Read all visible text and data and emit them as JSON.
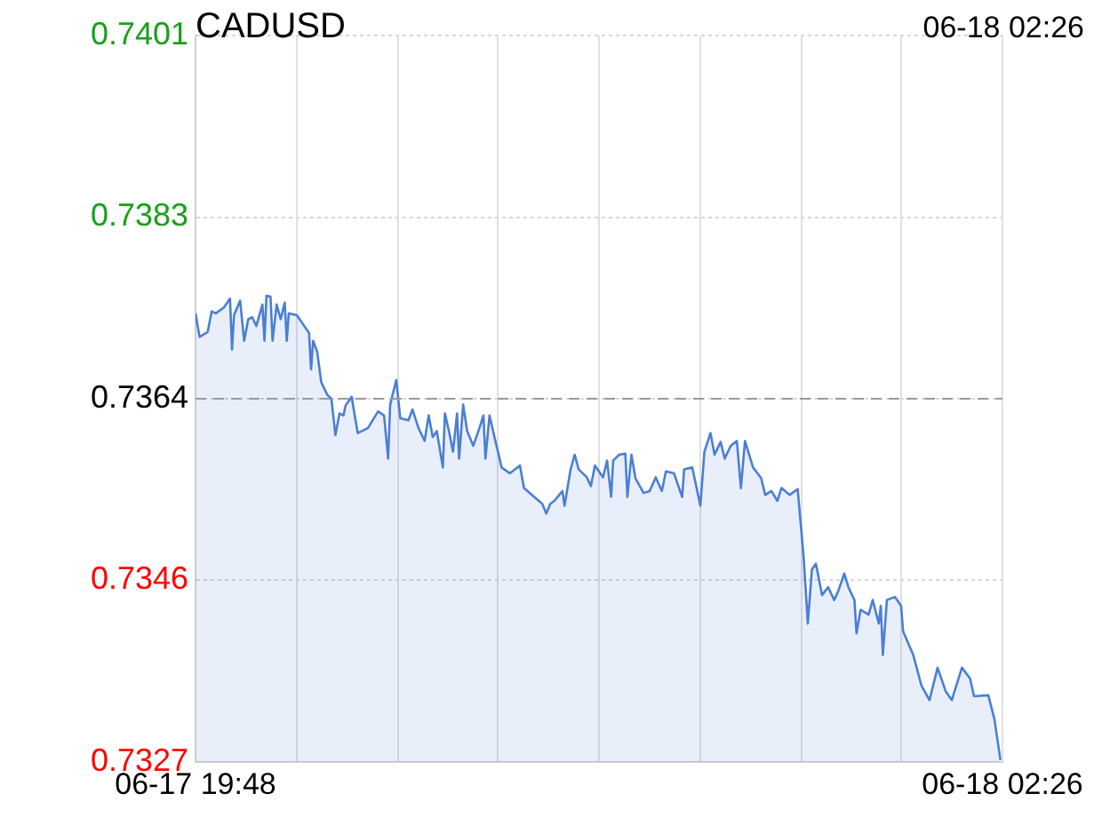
{
  "chart_data": {
    "type": "area",
    "title": "CADUSD",
    "annotations": [
      "06-18 02:26"
    ],
    "x": [
      "--06-17T19:48",
      "--06-17T19:50",
      "--06-17T19:54",
      "--06-17T19:56",
      "--06-17T19:58",
      "--06-17T20:02",
      "--06-17T20:05",
      "--06-17T20:06",
      "--06-17T20:07",
      "--06-17T20:10",
      "--06-17T20:12",
      "--06-17T20:14",
      "--06-17T20:16",
      "--06-17T20:18",
      "--06-17T20:21",
      "--06-17T20:22",
      "--06-17T20:23",
      "--06-17T20:25",
      "--06-17T20:26",
      "--06-17T20:28",
      "--06-17T20:30",
      "--06-17T20:32",
      "--06-17T20:33",
      "--06-17T20:34",
      "--06-17T20:38",
      "--06-17T20:41",
      "--06-17T20:44",
      "--06-17T20:45",
      "--06-17T20:46",
      "--06-17T20:48",
      "--06-17T20:50",
      "--06-17T20:53",
      "--06-17T20:55",
      "--06-17T20:57",
      "--06-17T20:59",
      "--06-17T21:01",
      "--06-17T21:02",
      "--06-17T21:05",
      "--06-17T21:08",
      "--06-17T21:13",
      "--06-17T21:18",
      "--06-17T21:21",
      "--06-17T21:23",
      "--06-17T21:24",
      "--06-17T21:27",
      "--06-17T21:29",
      "--06-17T21:33",
      "--06-17T21:35",
      "--06-17T21:38",
      "--06-17T21:41",
      "--06-17T21:43",
      "--06-17T21:45",
      "--06-17T21:47",
      "--06-17T21:50",
      "--06-17T21:51",
      "--06-17T21:53",
      "--06-17T21:55",
      "--06-17T21:57",
      "--06-17T21:58",
      "--06-17T22:00",
      "--06-17T22:02",
      "--06-17T22:05",
      "--06-17T22:08",
      "--06-17T22:10",
      "--06-17T22:11",
      "--06-17T22:13",
      "--06-17T22:15",
      "--06-17T22:19",
      "--06-17T22:23",
      "--06-17T22:28",
      "--06-17T22:30",
      "--06-17T22:35",
      "--06-17T22:39",
      "--06-17T22:41",
      "--06-17T22:43",
      "--06-17T22:45",
      "--06-17T22:49",
      "--06-17T22:50",
      "--06-17T22:53",
      "--06-17T22:55",
      "--06-17T22:57",
      "--06-17T23:01",
      "--06-17T23:03",
      "--06-17T23:05",
      "--06-17T23:09",
      "--06-17T23:11",
      "--06-17T23:13",
      "--06-17T23:14",
      "--06-17T23:17",
      "--06-17T23:20",
      "--06-17T23:21",
      "--06-17T23:23",
      "--06-17T23:25",
      "--06-17T23:29",
      "--06-17T23:32",
      "--06-17T23:35",
      "--06-17T23:38",
      "--06-17T23:40",
      "--06-17T23:44",
      "--06-17T23:48",
      "--06-17T23:49",
      "--06-17T23:53",
      "--06-17T23:57",
      "--06-17T23:59",
      "--06-18T00:02",
      "--06-18T00:04",
      "--06-18T00:07",
      "--06-18T00:09",
      "--06-18T00:12",
      "--06-18T00:15",
      "--06-18T00:17",
      "--06-18T00:19",
      "--06-18T00:23",
      "--06-18T00:27",
      "--06-18T00:29",
      "--06-18T00:32",
      "--06-18T00:35",
      "--06-18T00:37",
      "--06-18T00:41",
      "--06-18T00:45",
      "--06-18T00:48",
      "--06-18T00:50",
      "--06-18T00:52",
      "--06-18T00:54",
      "--06-18T00:57",
      "--06-18T01:00",
      "--06-18T01:03",
      "--06-18T01:05",
      "--06-18T01:08",
      "--06-18T01:10",
      "--06-18T01:13",
      "--06-18T01:14",
      "--06-18T01:16",
      "--06-18T01:20",
      "--06-18T01:22",
      "--06-18T01:25",
      "--06-18T01:26",
      "--06-18T01:27",
      "--06-18T01:29",
      "--06-18T01:33",
      "--06-18T01:36",
      "--06-18T01:37",
      "--06-18T01:42",
      "--06-18T01:46",
      "--06-18T01:50",
      "--06-18T01:54",
      "--06-18T01:58",
      "--06-18T02:01",
      "--06-18T02:06",
      "--06-18T02:10",
      "--06-18T02:12",
      "--06-18T02:19",
      "--06-18T02:22",
      "--06-18T02:25"
    ],
    "series": [
      {
        "color": "#4a7fd4",
        "values": [
          0.73727,
          0.73703,
          0.73708,
          0.73729,
          0.73727,
          0.73733,
          0.73742,
          0.7369,
          0.73725,
          0.7374,
          0.73699,
          0.73721,
          0.73723,
          0.73714,
          0.73736,
          0.73699,
          0.73745,
          0.73744,
          0.73699,
          0.73736,
          0.73721,
          0.73738,
          0.73699,
          0.73727,
          0.73725,
          0.73716,
          0.73707,
          0.7367,
          0.73699,
          0.73688,
          0.73657,
          0.73644,
          0.7364,
          0.73603,
          0.73625,
          0.73623,
          0.73633,
          0.73642,
          0.73605,
          0.7361,
          0.73627,
          0.73623,
          0.73579,
          0.73634,
          0.73659,
          0.7362,
          0.73618,
          0.73629,
          0.7361,
          0.73597,
          0.73623,
          0.73601,
          0.73607,
          0.7357,
          0.73625,
          0.73607,
          0.73586,
          0.73625,
          0.73579,
          0.73634,
          0.73607,
          0.73592,
          0.7361,
          0.73623,
          0.73579,
          0.73623,
          0.73605,
          0.7357,
          0.73564,
          0.73572,
          0.73549,
          0.7354,
          0.73533,
          0.73523,
          0.73533,
          0.73536,
          0.73546,
          0.73531,
          0.73568,
          0.73583,
          0.73568,
          0.7356,
          0.73551,
          0.73572,
          0.7356,
          0.73577,
          0.7354,
          0.73577,
          0.73583,
          0.73584,
          0.7354,
          0.73583,
          0.73559,
          0.73544,
          0.73546,
          0.7356,
          0.73546,
          0.73566,
          0.73564,
          0.7354,
          0.73568,
          0.7357,
          0.73531,
          0.73586,
          0.73605,
          0.73583,
          0.73596,
          0.73579,
          0.73592,
          0.73597,
          0.73549,
          0.73597,
          0.7357,
          0.73559,
          0.73542,
          0.73546,
          0.73536,
          0.73549,
          0.73542,
          0.73548,
          0.73477,
          0.73411,
          0.73466,
          0.73472,
          0.7344,
          0.73448,
          0.73435,
          0.73444,
          0.73462,
          0.73448,
          0.73435,
          0.73401,
          0.73425,
          0.7342,
          0.73435,
          0.73411,
          0.73429,
          0.73379,
          0.73435,
          0.73438,
          0.73429,
          0.73403,
          0.73379,
          0.73348,
          0.73333,
          0.73366,
          0.73342,
          0.73333,
          0.73366,
          0.73355,
          0.73337,
          0.73338,
          0.73314,
          0.73272
        ]
      }
    ],
    "xlim": [
      "--06-17T19:48",
      "--06-18T02:26"
    ],
    "xticks": [
      {
        "value": "--06-17T19:48",
        "label": "06-17 19:48"
      },
      {
        "value": "--06-17T20:38",
        "label": null
      },
      {
        "value": "--06-17T21:28",
        "label": null
      },
      {
        "value": "--06-17T22:17",
        "label": null
      },
      {
        "value": "--06-17T23:07",
        "label": null
      },
      {
        "value": "--06-17T23:57",
        "label": null
      },
      {
        "value": "--06-18T00:47",
        "label": null
      },
      {
        "value": "--06-18T01:36",
        "label": null
      },
      {
        "value": "--06-18T02:26",
        "label": "06-18 02:26"
      }
    ],
    "ylim": [
      0.7327,
      0.7401
    ],
    "yticks": [
      {
        "value": 0.7327,
        "label": "0.7327"
      },
      {
        "value": 0.73455,
        "label": "0.7346"
      },
      {
        "value": 0.7364,
        "label": "0.7364"
      },
      {
        "value": 0.73825,
        "label": "0.7383"
      },
      {
        "value": 0.7401,
        "label": "0.7401"
      }
    ],
    "ref_lines": [
      {
        "axis": "y",
        "value": 0.7364,
        "color": "#999999",
        "line_style": "dashed"
      }
    ],
    "grid": true,
    "legend": false,
    "marker": "none",
    "line_style": "solid"
  }
}
